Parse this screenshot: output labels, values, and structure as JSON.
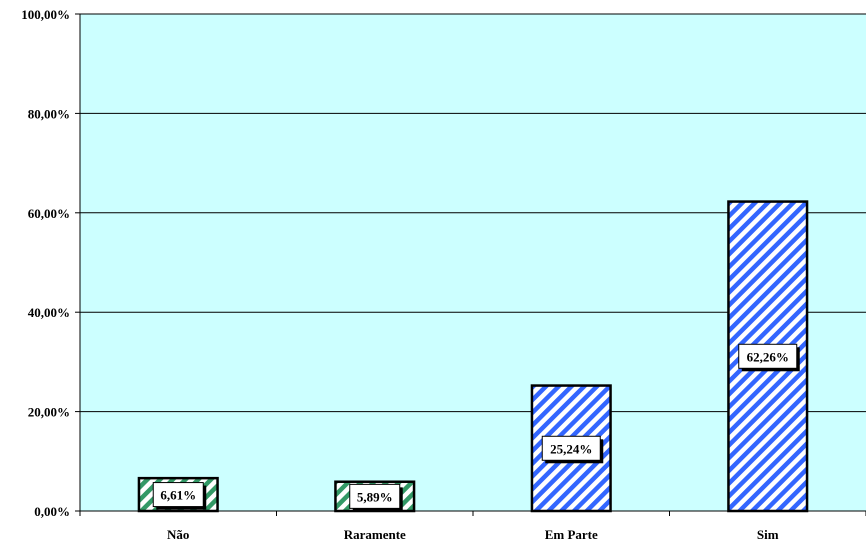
{
  "chart_data": {
    "type": "bar",
    "categories": [
      "Não",
      "Raramente",
      "Em Parte",
      "Sim"
    ],
    "values": [
      6.61,
      5.89,
      25.24,
      62.26
    ],
    "data_labels": [
      "6,61%",
      "5,89%",
      "25,24%",
      "62,26%"
    ],
    "ylim": [
      0,
      100
    ],
    "yticks": [
      0,
      20,
      40,
      60,
      80,
      100
    ],
    "ytick_labels": [
      "0,00%",
      "20,00%",
      "40,00%",
      "60,00%",
      "80,00%",
      "100,00%"
    ],
    "grid": true,
    "legend": "none",
    "colors": {
      "plot_background": "#ccffff",
      "gridline": "#000000",
      "pattern_green": "#339966",
      "pattern_blue": "#3366ff",
      "bar_border": "#000000"
    },
    "bar_patterns": [
      "green",
      "green",
      "blue",
      "blue"
    ]
  }
}
